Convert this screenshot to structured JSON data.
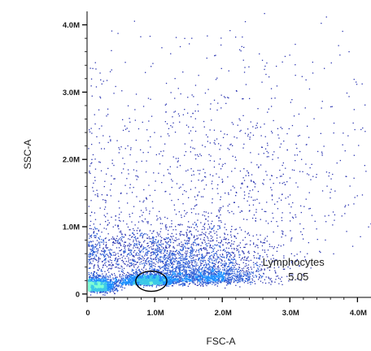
{
  "chart_data": {
    "type": "scatter",
    "subtype": "flow-cytometry-density-dot-plot",
    "title": "",
    "xlabel": "FSC-A",
    "ylabel": "SSC-A",
    "xlim": [
      0,
      4200000
    ],
    "ylim": [
      -50000,
      4200000
    ],
    "xticks": [
      {
        "value": 0,
        "label": "0"
      },
      {
        "value": 1000000,
        "label": "1.0M"
      },
      {
        "value": 2000000,
        "label": "2.0M"
      },
      {
        "value": 3000000,
        "label": "3.0M"
      },
      {
        "value": 4000000,
        "label": "4.0M"
      }
    ],
    "yticks": [
      {
        "value": 0,
        "label": "0"
      },
      {
        "value": 1000000,
        "label": "1.0M"
      },
      {
        "value": 2000000,
        "label": "2.0M"
      },
      {
        "value": 3000000,
        "label": "3.0M"
      },
      {
        "value": 4000000,
        "label": "4.0M"
      }
    ],
    "grid": false,
    "colors": {
      "low_density": "#2a34b0",
      "mid_density": "#1e90ff",
      "high_density": "#7fffd4",
      "axis": "#000000",
      "gate": "#000000"
    },
    "clusters": [
      {
        "cx": 900000,
        "cy": 180000,
        "sx": 210000,
        "sy": 65000,
        "weight": 0.22
      },
      {
        "cx": 150000,
        "cy": 90000,
        "sx": 130000,
        "sy": 80000,
        "weight": 0.2
      },
      {
        "cx": 1750000,
        "cy": 220000,
        "sx": 450000,
        "sy": 110000,
        "weight": 0.2
      },
      {
        "cx": 1200000,
        "cy": 500000,
        "sx": 800000,
        "sy": 280000,
        "weight": 0.25
      },
      {
        "cx": 2000000,
        "cy": 1500000,
        "sx": 1300000,
        "sy": 1100000,
        "weight": 0.13
      }
    ],
    "gates": [
      {
        "name": "Lymphocytes",
        "percent": "5.05",
        "shape": "ellipse",
        "center": [
          950000,
          190000
        ],
        "radius": [
          230000,
          150000
        ],
        "label_anchor": [
          2500000,
          420000
        ]
      }
    ]
  }
}
